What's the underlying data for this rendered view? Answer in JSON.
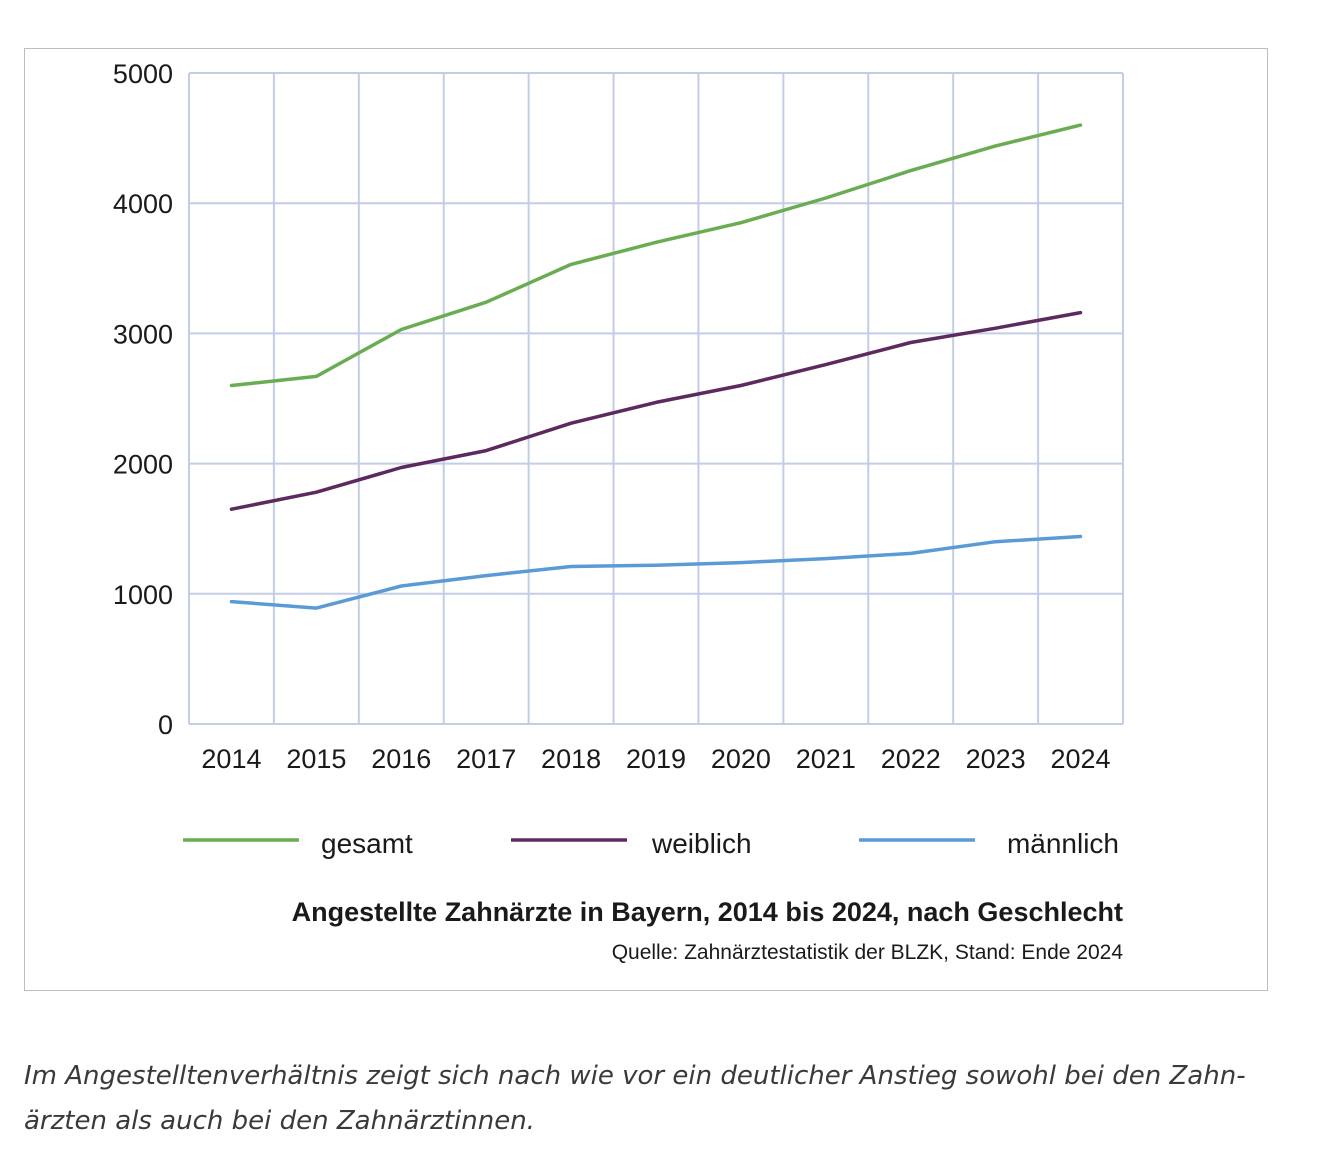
{
  "chart_data": {
    "type": "line",
    "title": "Angestellte Zahnärzte in Bayern, 2014 bis 2024, nach Geschlecht",
    "subtitle": "Quelle: Zahnärztestatistik der BLZK, Stand: Ende 2024",
    "xlabel": "",
    "ylabel": "",
    "x": [
      "2014",
      "2015",
      "2016",
      "2017",
      "2018",
      "2019",
      "2020",
      "2021",
      "2022",
      "2023",
      "2024"
    ],
    "ylim": [
      0,
      5000
    ],
    "yticks": [
      0,
      1000,
      2000,
      3000,
      4000,
      5000
    ],
    "grid": true,
    "legend": "bottom",
    "series": [
      {
        "name": "gesamt",
        "color": "#6aac52",
        "values": [
          2600,
          2670,
          3030,
          3240,
          3530,
          3700,
          3850,
          4040,
          4250,
          4440,
          4600
        ]
      },
      {
        "name": "weiblich",
        "color": "#5c2a5e",
        "values": [
          1650,
          1780,
          1970,
          2100,
          2310,
          2470,
          2600,
          2760,
          2930,
          3040,
          3160
        ]
      },
      {
        "name": "männlich",
        "color": "#5b9bd5",
        "values": [
          940,
          890,
          1060,
          1140,
          1210,
          1220,
          1240,
          1270,
          1310,
          1400,
          1440
        ]
      }
    ]
  },
  "caption": {
    "line1": "Im Angestelltenverhältnis zeigt sich nach wie vor ein deutlicher Anstieg sowohl bei den Zahn-",
    "line2": "ärzten als auch bei den Zahnärztinnen."
  }
}
